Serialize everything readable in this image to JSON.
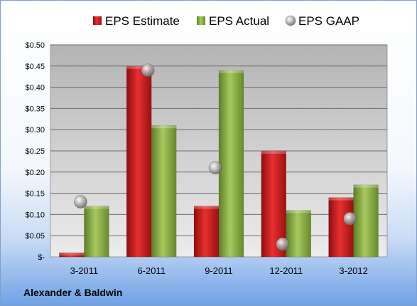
{
  "footer": {
    "company": "Alexander & Baldwin"
  },
  "chart_data": {
    "type": "bar",
    "categories": [
      "3-2011",
      "6-2011",
      "9-2011",
      "12-2011",
      "3-2012"
    ],
    "series": [
      {
        "name": "EPS Estimate",
        "kind": "bar",
        "color": "#cc1a1a",
        "values": [
          0.01,
          0.45,
          0.12,
          0.25,
          0.14
        ]
      },
      {
        "name": "EPS Actual",
        "kind": "bar",
        "color": "#8db04a",
        "values": [
          0.12,
          0.31,
          0.44,
          0.11,
          0.17
        ]
      },
      {
        "name": "EPS GAAP",
        "kind": "marker",
        "color": "#a8a8a8",
        "values": [
          0.13,
          0.44,
          0.21,
          0.03,
          0.09
        ]
      }
    ],
    "y_ticks": [
      "$-",
      "$0.05",
      "$0.10",
      "$0.15",
      "$0.20",
      "$0.25",
      "$0.30",
      "$0.35",
      "$0.40",
      "$0.45",
      "$0.50"
    ],
    "ylim": [
      0,
      0.5
    ],
    "grid": true,
    "legend_position": "top"
  }
}
